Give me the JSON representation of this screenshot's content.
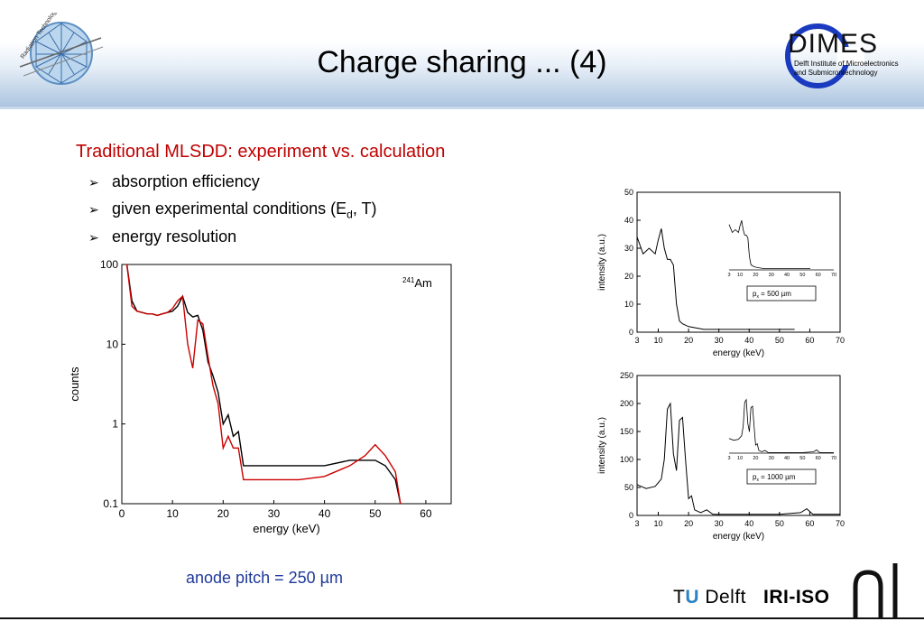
{
  "slide": {
    "title": "Charge sharing ... (4)",
    "heading": "Traditional MLSDD: experiment vs. calculation",
    "bullets": {
      "b1": "absorption efficiency",
      "b2_pre": "given experimental conditions (E",
      "b2_sub": "d",
      "b2_post": ", T)",
      "b3": "energy resolution"
    },
    "pitch_label": "anode pitch = 250 µm",
    "dimes": {
      "name": "DIMES",
      "line1": "Delft Institute of Microelectronics",
      "line2": "and Submicrontechnology"
    },
    "logo_left_text": "Radiation Technology",
    "footer": {
      "tu_t": "T",
      "tu_u": "U",
      "tu_rest": " Delft",
      "iri": "IRI-ISO"
    }
  },
  "chart_data": [
    {
      "type": "line",
      "y_scale": "log",
      "xlabel": "energy (keV)",
      "ylabel": "counts",
      "xlim": [
        0,
        65
      ],
      "ylim": [
        0.1,
        100
      ],
      "x_ticks": [
        "0",
        "10",
        "20",
        "30",
        "40",
        "50",
        "60"
      ],
      "y_ticks": [
        "0.1",
        "1",
        "10",
        "100"
      ],
      "annotation": {
        "sup": "241",
        "text": "Am"
      },
      "series": [
        {
          "role": "measured",
          "color": "#000000",
          "x": [
            1,
            2,
            3,
            4,
            5,
            6,
            7,
            8,
            9,
            10,
            11,
            12,
            13,
            14,
            15,
            16,
            17,
            18,
            19,
            20,
            21,
            22,
            23,
            24,
            25,
            30,
            35,
            40,
            45,
            50,
            52,
            54,
            55
          ],
          "y": [
            100,
            35,
            26,
            25,
            24,
            24,
            23,
            24,
            25,
            26,
            30,
            40,
            25,
            22,
            23,
            15,
            6,
            4,
            2.5,
            1,
            1.3,
            0.7,
            0.8,
            0.3,
            0.3,
            0.3,
            0.3,
            0.3,
            0.35,
            0.35,
            0.3,
            0.2,
            0.1
          ]
        },
        {
          "role": "calculated",
          "color": "#cc0000",
          "x": [
            1,
            2,
            3,
            4,
            5,
            6,
            7,
            8,
            9,
            10,
            11,
            12,
            13,
            14,
            15,
            16,
            17,
            18,
            19,
            20,
            21,
            22,
            23,
            24,
            25,
            27,
            30,
            35,
            40,
            45,
            48,
            50,
            52,
            54,
            55
          ],
          "y": [
            100,
            30,
            26,
            25,
            24,
            24,
            23,
            24,
            25,
            28,
            35,
            40,
            10,
            5,
            20,
            18,
            7,
            3,
            1.8,
            0.5,
            0.7,
            0.5,
            0.5,
            0.2,
            0.2,
            0.2,
            0.2,
            0.2,
            0.22,
            0.3,
            0.4,
            0.55,
            0.4,
            0.25,
            0.1
          ]
        }
      ]
    },
    {
      "type": "line",
      "xlabel": "energy (keV)",
      "ylabel": "intensity (a.u.)",
      "xlim": [
        3,
        70
      ],
      "ylim": [
        0,
        50
      ],
      "x_ticks": [
        "3",
        "10",
        "20",
        "30",
        "40",
        "50",
        "60",
        "70"
      ],
      "y_ticks": [
        "0",
        "10",
        "20",
        "30",
        "40",
        "50"
      ],
      "inset_label": {
        "pre": "p",
        "sub": "x",
        "post": " =  500 µm"
      },
      "inset_x_ticks": [
        "3",
        "10",
        "20",
        "30",
        "40",
        "50",
        "60",
        "70"
      ],
      "series": [
        {
          "color": "#000000",
          "x": [
            3,
            5,
            7,
            9,
            10,
            11,
            12,
            13,
            14,
            15,
            16,
            17,
            18,
            20,
            25,
            30,
            40,
            50,
            55
          ],
          "y": [
            34,
            28,
            30,
            28,
            33,
            37,
            30,
            26,
            26,
            24,
            10,
            4,
            3,
            2,
            1,
            1,
            1,
            1,
            1
          ]
        }
      ]
    },
    {
      "type": "line",
      "xlabel": "energy (keV)",
      "ylabel": "intensity (a.u.)",
      "xlim": [
        3,
        70
      ],
      "ylim": [
        0,
        250
      ],
      "x_ticks": [
        "3",
        "10",
        "20",
        "30",
        "40",
        "50",
        "60",
        "70"
      ],
      "y_ticks": [
        "0",
        "50",
        "100",
        "150",
        "200",
        "250"
      ],
      "inset_label": {
        "pre": "p",
        "sub": "x",
        "post": " =  1000 µm"
      },
      "inset_x_ticks": [
        "3",
        "10",
        "20",
        "30",
        "40",
        "50",
        "60",
        "70"
      ],
      "series": [
        {
          "color": "#000000",
          "x": [
            3,
            6,
            9,
            11,
            12,
            13,
            14,
            15,
            16,
            17,
            18,
            19,
            20,
            21,
            22,
            24,
            26,
            28,
            30,
            40,
            50,
            57,
            59,
            61,
            70
          ],
          "y": [
            55,
            48,
            52,
            65,
            100,
            190,
            200,
            110,
            80,
            170,
            175,
            100,
            30,
            35,
            10,
            5,
            10,
            2,
            2,
            2,
            2,
            5,
            12,
            2,
            2
          ]
        }
      ]
    }
  ]
}
